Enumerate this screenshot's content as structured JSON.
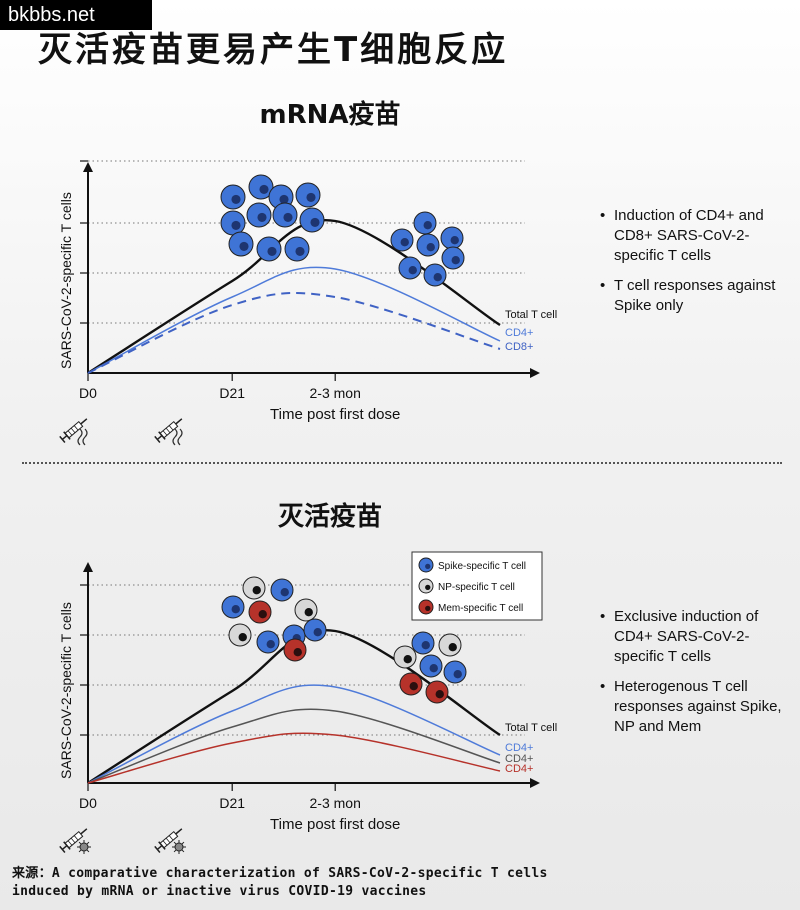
{
  "watermark": "bkbbs.net",
  "title": "灭活疫苗更易产生T细胞反应",
  "source": {
    "line1": "来源：A comparative characterization of SARS-CoV-2-specific T cells",
    "line2": "induced by mRNA or inactive virus COVID-19 vaccines"
  },
  "colors": {
    "total": "#111111",
    "cd4": "#4f7bd9",
    "cd8": "#3f62c4",
    "spike": "#3f74d6",
    "np": "#555555",
    "mem": "#b6322a"
  },
  "icons": [
    "syringe-icon",
    "wave-icon",
    "virus-icon"
  ],
  "chart_data": [
    {
      "type": "line",
      "title": "mRNA疫苗",
      "ylabel": "SARS-CoV-2-specific T cells",
      "xlabel": "Time post first dose",
      "x_ticks": [
        "D0",
        "D21",
        "2-3 mon"
      ],
      "grid": true,
      "series": [
        {
          "name": "Total T cell",
          "style": "solid",
          "values": [
            [
              0,
              0
            ],
            [
              0.35,
              0.46
            ],
            [
              0.6,
              0.76
            ],
            [
              1,
              0.24
            ]
          ]
        },
        {
          "name": "CD4+",
          "style": "solid",
          "values": [
            [
              0,
              0
            ],
            [
              0.35,
              0.38
            ],
            [
              0.6,
              0.52
            ],
            [
              1,
              0.16
            ]
          ]
        },
        {
          "name": "CD8+",
          "style": "dashed",
          "values": [
            [
              0,
              0
            ],
            [
              0.35,
              0.34
            ],
            [
              0.6,
              0.38
            ],
            [
              1,
              0.12
            ]
          ]
        }
      ],
      "cell_clusters": [
        "spike",
        "spike"
      ],
      "notes": [
        "Induction of CD4+ and CD8+ SARS-CoV-2-specific T cells",
        "T cell responses against Spike only"
      ]
    },
    {
      "type": "line",
      "title": "灭活疫苗",
      "ylabel": "SARS-CoV-2-specific T cells",
      "xlabel": "Time post first dose",
      "x_ticks": [
        "D0",
        "D21",
        "2-3 mon"
      ],
      "grid": true,
      "legend": {
        "placement": "top-right",
        "entries": [
          {
            "key": "spike",
            "label": "Spike-specific T cell"
          },
          {
            "key": "np",
            "label": "NP-specific T cell"
          },
          {
            "key": "mem",
            "label": "Mem-specific T cell"
          }
        ]
      },
      "series": [
        {
          "name": "Total T cell",
          "style": "solid",
          "values": [
            [
              0,
              0
            ],
            [
              0.35,
              0.46
            ],
            [
              0.6,
              0.76
            ],
            [
              1,
              0.24
            ]
          ]
        },
        {
          "name": "CD4+",
          "color_key": "cd4",
          "style": "solid",
          "values": [
            [
              0,
              0
            ],
            [
              0.35,
              0.36
            ],
            [
              0.6,
              0.48
            ],
            [
              1,
              0.14
            ]
          ]
        },
        {
          "name": "CD4+",
          "color_key": "np",
          "style": "solid",
          "values": [
            [
              0,
              0
            ],
            [
              0.35,
              0.28
            ],
            [
              0.6,
              0.36
            ],
            [
              1,
              0.1
            ]
          ]
        },
        {
          "name": "CD4+",
          "color_key": "mem",
          "style": "solid",
          "values": [
            [
              0,
              0
            ],
            [
              0.35,
              0.2
            ],
            [
              0.6,
              0.24
            ],
            [
              1,
              0.06
            ]
          ]
        }
      ],
      "cell_clusters": [
        "mixed",
        "mixed"
      ],
      "notes": [
        "Exclusive induction of CD4+ SARS-CoV-2-specific T cells",
        "Heterogenous T cell responses against Spike, NP and Mem"
      ]
    }
  ]
}
